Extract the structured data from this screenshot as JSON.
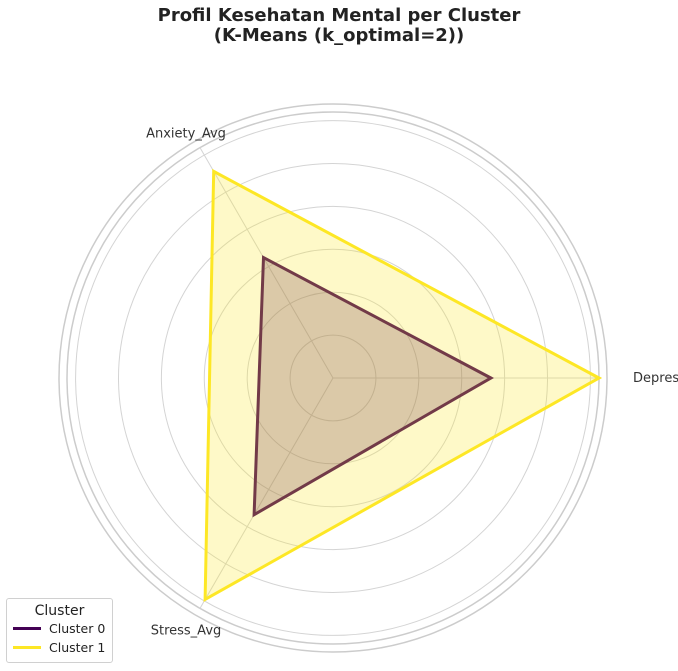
{
  "title_line1": "Profil Kesehatan Mental per Cluster",
  "title_line2": "(K-Means (k_optimal=2))",
  "chart_data": {
    "type": "radar",
    "categories": [
      "Depression_Avg",
      "Anxiety_Avg",
      "Stress_Avg"
    ],
    "rlim": [
      0,
      3.1
    ],
    "grid": true,
    "series": [
      {
        "name": "Cluster 0",
        "values": [
          1.84,
          1.62,
          1.84
        ],
        "color": "#440154"
      },
      {
        "name": "Cluster 1",
        "values": [
          3.1,
          2.78,
          2.98
        ],
        "color": "#fde725"
      }
    ],
    "legend": {
      "title": "Cluster",
      "position": "bottom-left"
    }
  }
}
